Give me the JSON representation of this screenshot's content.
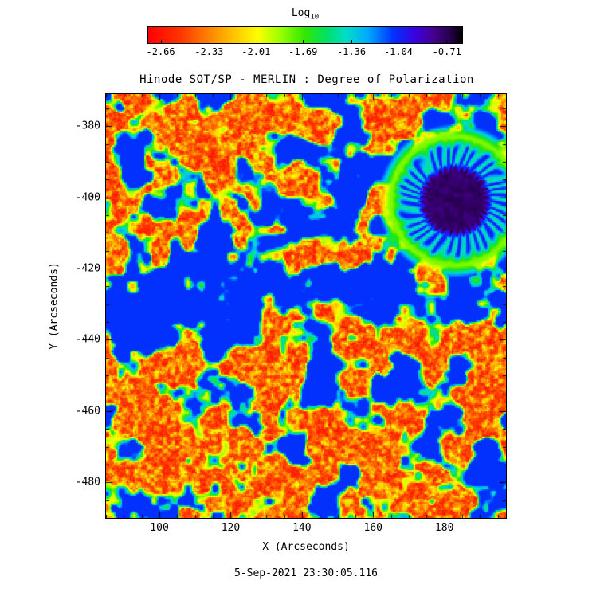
{
  "chart_data": {
    "type": "heatmap",
    "title": "Hinode SOT/SP - MERLIN : Degree of Polarization",
    "xlabel": "X (Arcseconds)",
    "ylabel": "Y (Arcseconds)",
    "xlim": [
      85,
      197.3
    ],
    "ylim": [
      -490,
      -371
    ],
    "x_ticks": [
      100,
      120,
      140,
      160,
      180
    ],
    "y_ticks": [
      -380,
      -400,
      -420,
      -440,
      -460,
      -480
    ],
    "minor_tick_step": 5,
    "grid": false,
    "value_units": "log10 degree of polarization",
    "background_value_range": [
      -2.62,
      -1.9
    ],
    "colorbar": {
      "label_main": "Log",
      "label_sub": "10",
      "orientation": "horizontal",
      "ticks": [
        -2.66,
        -2.33,
        -2.01,
        -1.69,
        -1.36,
        -1.04,
        -0.71
      ],
      "tick_labels": [
        "-2.66",
        "-2.33",
        "-2.01",
        "-1.69",
        "-1.36",
        "-1.04",
        "-0.71"
      ],
      "domain": [
        -2.75,
        -0.6
      ],
      "stops": [
        [
          0.0,
          "#ff0000"
        ],
        [
          0.1,
          "#ff3300"
        ],
        [
          0.2,
          "#ff8800"
        ],
        [
          0.3,
          "#ffd900"
        ],
        [
          0.35,
          "#fbff00"
        ],
        [
          0.42,
          "#9dff00"
        ],
        [
          0.5,
          "#2fe800"
        ],
        [
          0.57,
          "#00e06a"
        ],
        [
          0.63,
          "#00ddc8"
        ],
        [
          0.7,
          "#00a9ff"
        ],
        [
          0.78,
          "#0033ff"
        ],
        [
          0.85,
          "#3c00e0"
        ],
        [
          0.91,
          "#45008c"
        ],
        [
          0.96,
          "#26004d"
        ],
        [
          1.0,
          "#000000"
        ]
      ]
    },
    "features": {
      "sunspot": {
        "x": 183,
        "y": -401,
        "umbra_radius": 8.3,
        "penumbra_radius": 14.5,
        "outer_radius": 18,
        "umbra_value": -0.66,
        "penumbra_value_range": [
          -1.45,
          -1.0
        ]
      },
      "network_hotspots": [
        [
          113,
          -424,
          14,
          0.26
        ],
        [
          96,
          -419,
          10,
          0.25
        ],
        [
          133,
          -421,
          11,
          0.24
        ],
        [
          150,
          -430,
          9,
          0.18
        ],
        [
          124,
          -433,
          9,
          0.2
        ],
        [
          160,
          -425,
          7,
          0.15
        ],
        [
          149,
          -374,
          6,
          0.22
        ],
        [
          140,
          -383,
          5,
          0.15
        ],
        [
          160,
          -385,
          5,
          0.12
        ],
        [
          172,
          -433,
          8,
          0.2
        ],
        [
          186,
          -428,
          8,
          0.22
        ],
        [
          196,
          -430,
          6,
          0.25
        ],
        [
          193,
          -412,
          5,
          0.18
        ],
        [
          166,
          -441,
          7,
          0.16
        ],
        [
          107,
          -457,
          6,
          0.15
        ],
        [
          96,
          -476,
          5,
          0.14
        ],
        [
          120,
          -466,
          5,
          0.12
        ],
        [
          143,
          -452,
          5,
          0.12
        ],
        [
          196,
          -447,
          5,
          0.15
        ],
        [
          88,
          -404,
          6,
          0.15
        ],
        [
          92,
          -436,
          7,
          0.18
        ],
        [
          188,
          -372,
          6,
          0.15
        ],
        [
          197,
          -383,
          5,
          0.15
        ]
      ]
    },
    "noise_seed": 7
  },
  "footer": {
    "timestamp": "5-Sep-2021 23:30:05.116"
  }
}
